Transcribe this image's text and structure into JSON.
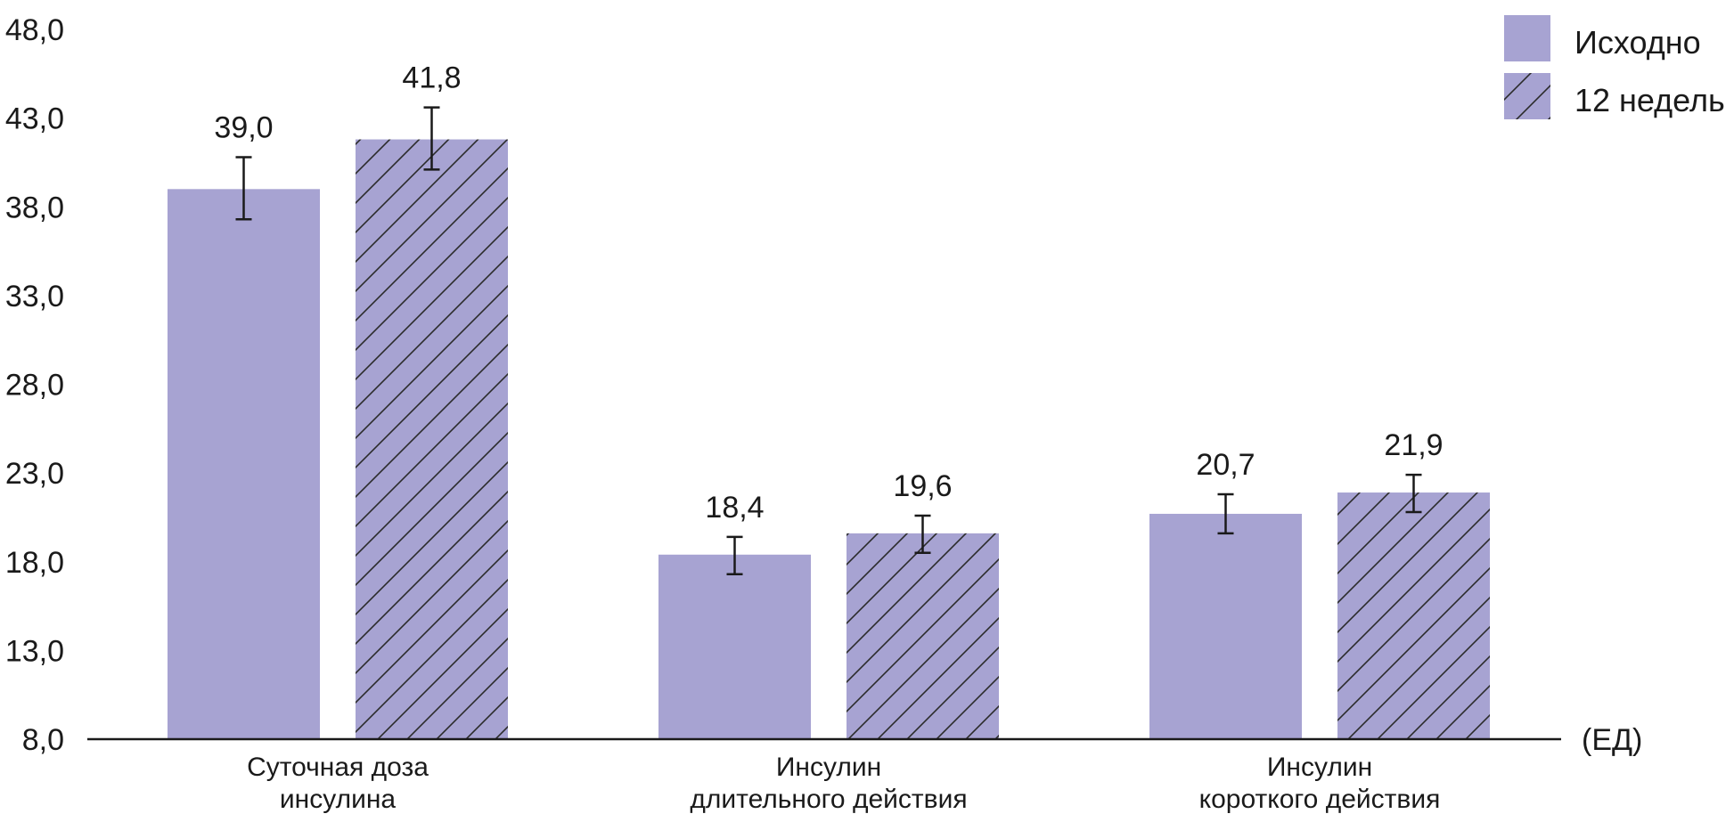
{
  "chart_data": {
    "type": "bar",
    "categories": [
      [
        "Суточная доза",
        "инсулина"
      ],
      [
        "Инсулин",
        "длительного действия"
      ],
      [
        "Инсулин",
        "короткого действия"
      ]
    ],
    "series": [
      {
        "name": "Исходно",
        "values": [
          39.0,
          18.4,
          20.7
        ],
        "labels": [
          "39,0",
          "18,4",
          "20,7"
        ],
        "error_low": [
          37.3,
          17.3,
          19.6
        ],
        "error_high": [
          40.8,
          19.4,
          21.8
        ],
        "pattern": "solid"
      },
      {
        "name": "12 недель",
        "values": [
          41.8,
          19.6,
          21.9
        ],
        "labels": [
          "41,8",
          "19,6",
          "21,9"
        ],
        "error_low": [
          40.1,
          18.5,
          20.8
        ],
        "error_high": [
          43.6,
          20.6,
          22.9
        ],
        "pattern": "hatched"
      }
    ],
    "y_ticks": [
      "8,0",
      "13,0",
      "18,0",
      "23,0",
      "28,0",
      "33,0",
      "38,0",
      "43,0",
      "48,0"
    ],
    "y_tick_values": [
      8,
      13,
      18,
      23,
      28,
      33,
      38,
      43,
      48
    ],
    "ylim": [
      8,
      48
    ],
    "yunit": "(ЕД)",
    "legend_position": "top-right",
    "grid": false,
    "colors": {
      "bar": "#a7a3d2",
      "hatch": "#2b2b2b",
      "axis": "#1a1a1a",
      "text": "#1a1a1a"
    }
  }
}
